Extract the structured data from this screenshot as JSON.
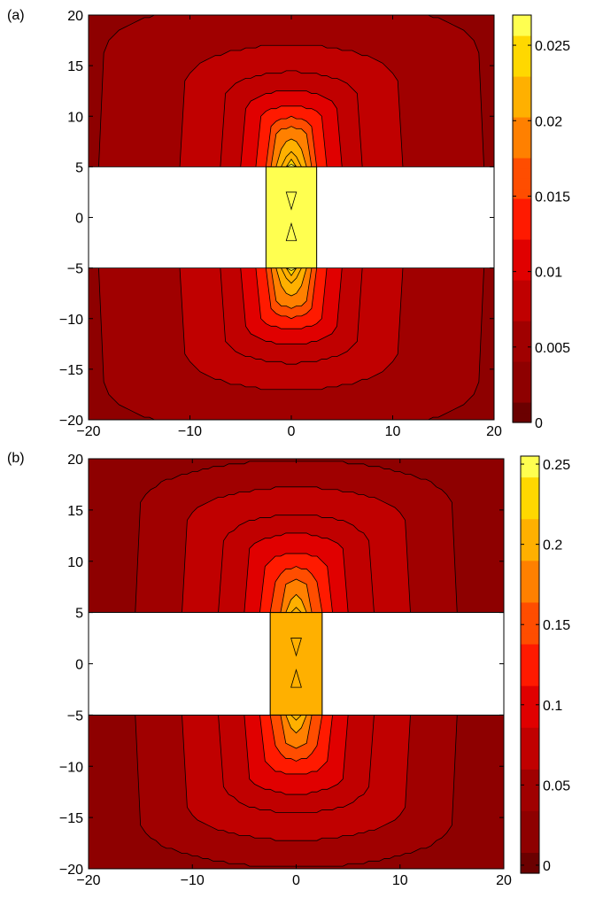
{
  "panels": [
    {
      "label": "(a)",
      "colorbar_ticks": [
        "0",
        "0.005",
        "0.01",
        "0.015",
        "0.02",
        "0.025"
      ]
    },
    {
      "label": "(b)",
      "colorbar_ticks": [
        "0",
        "0.05",
        "0.1",
        "0.15",
        "0.2",
        "0.25"
      ]
    }
  ],
  "colormap": [
    "#6b0000",
    "#8e0000",
    "#a00000",
    "#c00000",
    "#e00000",
    "#ff1a00",
    "#ff4d00",
    "#ff8000",
    "#ffb000",
    "#ffd800",
    "#ffff50"
  ],
  "chart_data": [
    {
      "type": "heatmap",
      "subtype": "filled-contour",
      "panel": "(a)",
      "xlim": [
        -20,
        20
      ],
      "ylim": [
        -20,
        20
      ],
      "xticks": [
        -20,
        -10,
        0,
        10,
        20
      ],
      "yticks": [
        -20,
        -15,
        -10,
        -5,
        0,
        5,
        10,
        15,
        20
      ],
      "colorbar": {
        "range": [
          0,
          0.027
        ],
        "ticks": [
          0,
          0.005,
          0.01,
          0.015,
          0.02,
          0.025
        ]
      },
      "masked_regions": [
        {
          "x": [
            -20,
            -2.5
          ],
          "y": [
            -5,
            5
          ]
        },
        {
          "x": [
            2.5,
            20
          ],
          "y": [
            -5,
            5
          ]
        }
      ],
      "channel": {
        "x": [
          -2.5,
          2.5
        ],
        "y": [
          -5,
          5
        ],
        "value": 0.026
      },
      "contour_levels": [
        0.001,
        0.002,
        0.004,
        0.006,
        0.008,
        0.01,
        0.012,
        0.014,
        0.017,
        0.02,
        0.023,
        0.025
      ],
      "background_value": 0.002,
      "grid": false
    },
    {
      "type": "heatmap",
      "subtype": "filled-contour",
      "panel": "(b)",
      "xlim": [
        -20,
        20
      ],
      "ylim": [
        -20,
        20
      ],
      "xticks": [
        -20,
        -10,
        0,
        10,
        20
      ],
      "yticks": [
        -20,
        -15,
        -10,
        -5,
        0,
        5,
        10,
        15,
        20
      ],
      "colorbar": {
        "range": [
          -0.005,
          0.255
        ],
        "ticks": [
          0,
          0.05,
          0.1,
          0.15,
          0.2,
          0.25
        ]
      },
      "masked_regions": [
        {
          "x": [
            -20,
            -2.5
          ],
          "y": [
            -5,
            5
          ]
        },
        {
          "x": [
            2.5,
            20
          ],
          "y": [
            -5,
            5
          ]
        }
      ],
      "channel": {
        "x": [
          -2.5,
          2.5
        ],
        "y": [
          -5,
          5
        ],
        "value": 0.2
      },
      "contour_levels": [
        0.01,
        0.02,
        0.03,
        0.045,
        0.06,
        0.08,
        0.1,
        0.12,
        0.15,
        0.18,
        0.21,
        0.23
      ],
      "background_value": 0.01,
      "grid": false
    }
  ]
}
